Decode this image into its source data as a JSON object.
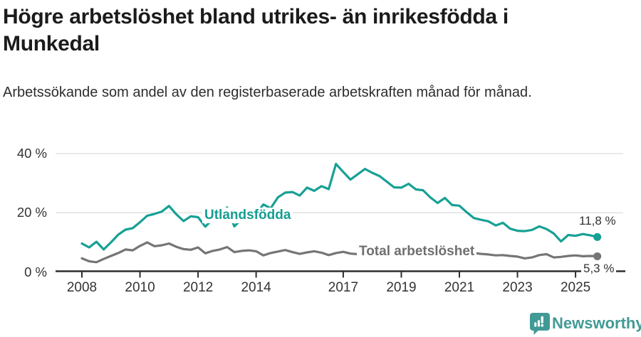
{
  "header": {
    "title": "Högre arbetslöshet bland utrikes- än inrikesfödda i Munkedal",
    "subtitle": "Arbetssökande som andel av den registerbaserade arbetskraften månad för månad."
  },
  "chart_data": {
    "type": "line",
    "title": "Högre arbetslöshet bland utrikes- än inrikesfödda i Munkedal",
    "xlabel": "",
    "ylabel": "Arbetssökande som andel av den registerbaserade arbetskraften",
    "x_start": 2008,
    "x_step": 0.25,
    "xlim": [
      2007.1,
      2026.7
    ],
    "ylim": [
      0,
      44
    ],
    "grid": "horizontal gridlines at 20 and 40 only",
    "legend_position": "inline labels on lines",
    "y_ticks": [
      {
        "value": 0,
        "label": "0 %"
      },
      {
        "value": 20,
        "label": "20 %"
      },
      {
        "value": 40,
        "label": "40 %"
      }
    ],
    "x_ticks": [
      "2008",
      "2010",
      "2012",
      "2014",
      "2017",
      "2019",
      "2021",
      "2023",
      "2025"
    ],
    "series": [
      {
        "name": "Utlandsfödda",
        "color": "#17a095",
        "end_label": "11,8 %",
        "end_value": 11.8,
        "values": [
          9.6,
          8.3,
          10.2,
          7.6,
          10.0,
          12.6,
          14.3,
          14.8,
          16.8,
          19.0,
          19.6,
          20.4,
          22.3,
          19.5,
          17.2,
          18.8,
          18.5,
          15.3,
          17.8,
          18.3,
          21.8,
          15.4,
          17.8,
          18.6,
          19.5,
          22.8,
          21.5,
          25.2,
          26.8,
          27.0,
          25.8,
          28.5,
          27.4,
          29.0,
          28.0,
          36.5,
          33.8,
          31.2,
          33.0,
          34.8,
          33.5,
          32.4,
          30.5,
          28.6,
          28.5,
          29.8,
          27.9,
          27.6,
          25.2,
          23.3,
          25.0,
          22.6,
          22.4,
          20.2,
          18.2,
          17.6,
          17.1,
          15.7,
          16.6,
          14.6,
          13.9,
          13.8,
          14.2,
          15.4,
          14.5,
          13.0,
          10.3,
          12.5,
          12.2,
          12.8,
          12.4,
          11.8
        ]
      },
      {
        "name": "Total arbetslöshet",
        "color": "#757575",
        "end_label": "5,3 %",
        "end_value": 5.3,
        "values": [
          4.6,
          3.6,
          3.3,
          4.4,
          5.4,
          6.4,
          7.6,
          7.3,
          8.8,
          10.0,
          8.7,
          9.0,
          9.6,
          8.5,
          7.7,
          7.5,
          8.3,
          6.3,
          7.1,
          7.6,
          8.4,
          6.7,
          7.1,
          7.3,
          7.0,
          5.6,
          6.4,
          6.9,
          7.4,
          6.7,
          6.1,
          6.6,
          7.0,
          6.5,
          5.7,
          6.4,
          6.8,
          6.2,
          6.0,
          6.3,
          6.5,
          6.0,
          5.8,
          6.2,
          6.3,
          5.9,
          6.1,
          6.6,
          7.6,
          8.4,
          8.1,
          7.7,
          7.4,
          6.9,
          6.4,
          6.1,
          5.9,
          5.6,
          5.7,
          5.4,
          5.2,
          4.6,
          4.9,
          5.7,
          6.0,
          4.9,
          5.1,
          5.4,
          5.6,
          5.3,
          5.4,
          5.3
        ]
      }
    ]
  },
  "footer": {
    "brand": "Newsworthy",
    "brand_color": "#419a95",
    "logo": "speech-bubble-bar-chart-exclamation"
  }
}
